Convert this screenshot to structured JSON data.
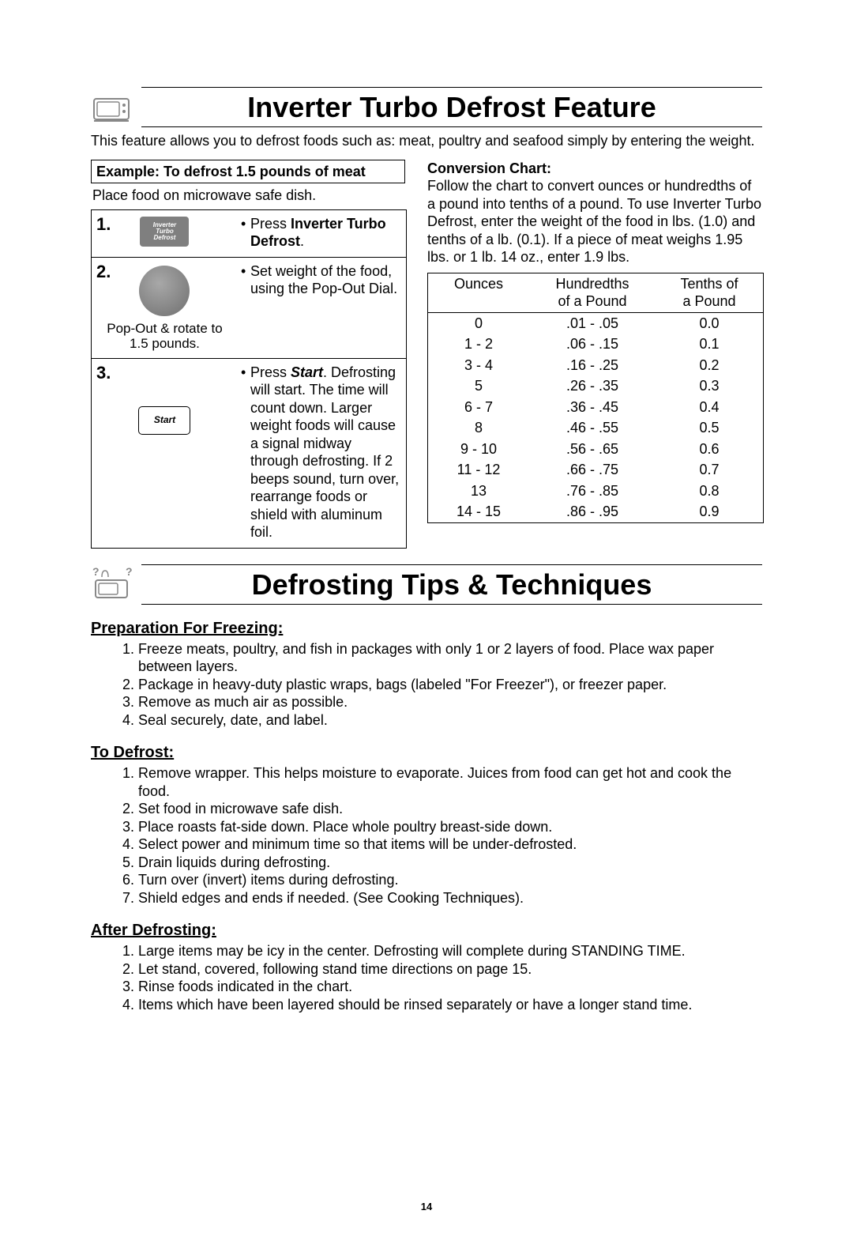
{
  "page_number": "14",
  "section1": {
    "title": "Inverter Turbo Defrost Feature",
    "intro": "This feature allows you to defrost foods such as: meat, poultry and seafood simply by entering the weight.",
    "example_title": "Example: To defrost 1.5 pounds of meat",
    "example_sub": "Place food on microwave safe dish.",
    "steps": [
      {
        "num": "1.",
        "btn_line1": "Inverter",
        "btn_line2": "Turbo",
        "btn_line3": "Defrost",
        "caption": "",
        "right_pre": "Press ",
        "right_bold": "Inverter Turbo Defrost",
        "right_post": "."
      },
      {
        "num": "2.",
        "caption": "Pop-Out & rotate to 1.5 pounds.",
        "right_text": "Set weight of the food, using the Pop-Out Dial."
      },
      {
        "num": "3.",
        "btn_label": "Start",
        "caption": "",
        "right_pre": "Press ",
        "right_bold": "Start",
        "right_post": ". Defrosting will start. The time will count down. Larger weight foods will cause a signal midway through defrosting. If 2 beeps sound, turn over, rearrange foods or shield with aluminum foil."
      }
    ],
    "conversion": {
      "title": "Conversion Chart:",
      "intro": "Follow the chart to convert ounces or hundredths of a pound into tenths of a pound. To use Inverter Turbo Defrost, enter the weight of the food in lbs. (1.0) and tenths of a lb. (0.1). If a piece of meat weighs 1.95 lbs. or 1 lb. 14 oz., enter 1.9 lbs.",
      "head": {
        "c1": "Ounces",
        "c2a": "Hundredths",
        "c2b": "of a Pound",
        "c3a": "Tenths of",
        "c3b": "a Pound"
      },
      "rows": [
        {
          "c1": "0",
          "c2": ".01 - .05",
          "c3": "0.0"
        },
        {
          "c1": "1 - 2",
          "c2": ".06 - .15",
          "c3": "0.1"
        },
        {
          "c1": "3 - 4",
          "c2": ".16 - .25",
          "c3": "0.2"
        },
        {
          "c1": "5",
          "c2": ".26 - .35",
          "c3": "0.3"
        },
        {
          "c1": "6 - 7",
          "c2": ".36 - .45",
          "c3": "0.4"
        },
        {
          "c1": "8",
          "c2": ".46 - .55",
          "c3": "0.5"
        },
        {
          "c1": "9 - 10",
          "c2": ".56 - .65",
          "c3": "0.6"
        },
        {
          "c1": "11 - 12",
          "c2": ".66 - .75",
          "c3": "0.7"
        },
        {
          "c1": "13",
          "c2": ".76 - .85",
          "c3": "0.8"
        },
        {
          "c1": "14 - 15",
          "c2": ".86 - .95",
          "c3": "0.9"
        }
      ]
    }
  },
  "section2": {
    "title": "Defrosting Tips & Techniques",
    "groups": [
      {
        "heading": "Preparation For Freezing:",
        "items": [
          "Freeze meats, poultry, and fish in packages with only 1 or 2 layers of food. Place wax paper between layers.",
          "Package in heavy-duty plastic wraps, bags (labeled \"For Freezer\"), or freezer paper.",
          "Remove as much air as possible.",
          "Seal securely, date, and label."
        ]
      },
      {
        "heading": "To Defrost:",
        "items": [
          "Remove wrapper. This helps moisture to evaporate. Juices from food can get hot and cook the food.",
          "Set food in microwave safe dish.",
          "Place roasts fat-side down. Place whole poultry breast-side down.",
          "Select power and minimum time so that items will be under-defrosted.",
          "Drain liquids during defrosting.",
          "Turn over (invert) items during defrosting.",
          "Shield edges and ends if needed. (See Cooking Techniques)."
        ]
      },
      {
        "heading": "After Defrosting:",
        "items": [
          "Large items may be icy in the center. Defrosting will complete during STANDING TIME.",
          "Let stand, covered, following stand time directions on page 15.",
          "Rinse foods indicated in the chart.",
          "Items which have been layered should be rinsed separately or have a longer stand time."
        ]
      }
    ]
  }
}
